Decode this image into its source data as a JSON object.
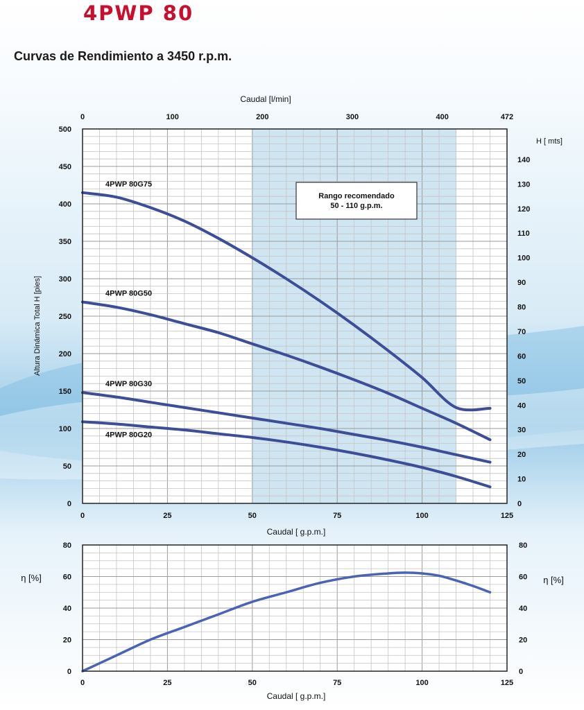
{
  "header": {
    "title": "4PWP 80",
    "subtitle": "Curvas de Rendimiento a 3450 r.p.m."
  },
  "colors": {
    "title": "#c8102e",
    "curve": "#3d4d97",
    "efficiency_curve": "#4a63b3",
    "recommended_band": "#cfe6f2"
  },
  "chart_data": [
    {
      "type": "line",
      "title": "",
      "xlabel": "Caudal [ g.p.m.]",
      "ylabel": "Altura Dinámica Total H [pies]",
      "xlim": [
        0,
        125
      ],
      "ylim": [
        0,
        500
      ],
      "x_ticks": [
        0,
        25,
        50,
        75,
        100,
        125
      ],
      "y_ticks": [
        0,
        50,
        100,
        150,
        200,
        250,
        300,
        350,
        400,
        450,
        500
      ],
      "top_axis": {
        "label": "Caudal [l/min]",
        "ticks": [
          {
            "value": 0,
            "label": "0"
          },
          {
            "value": 100,
            "label": "100"
          },
          {
            "value": 200,
            "label": "200"
          },
          {
            "value": 300,
            "label": "300"
          },
          {
            "value": 400,
            "label": "400"
          },
          {
            "value": 472,
            "label": "472"
          }
        ],
        "max": 472
      },
      "right_axis": {
        "label": "H [ mts]",
        "ticks": [
          0,
          10,
          20,
          30,
          40,
          50,
          60,
          70,
          80,
          90,
          100,
          110,
          120,
          130,
          140
        ],
        "max": 152.4
      },
      "recommended_range": {
        "label_line1": "Rango recomendado",
        "label_line2": "50 - 110 g.p.m.",
        "x_from": 50,
        "x_to": 110
      },
      "grid": true,
      "series": [
        {
          "name": "4PWP 80G75",
          "x": [
            0,
            10,
            20,
            30,
            40,
            50,
            60,
            70,
            80,
            90,
            100,
            110,
            120
          ],
          "y": [
            415,
            409,
            395,
            377,
            354,
            328,
            300,
            270,
            238,
            204,
            168,
            128,
            127
          ]
        },
        {
          "name": "4PWP 80G50",
          "x": [
            0,
            10,
            20,
            30,
            40,
            50,
            60,
            70,
            80,
            90,
            100,
            110,
            120
          ],
          "y": [
            269,
            262,
            252,
            240,
            228,
            213,
            198,
            182,
            165,
            147,
            127,
            107,
            85
          ]
        },
        {
          "name": "4PWP 80G30",
          "x": [
            0,
            10,
            20,
            30,
            40,
            50,
            60,
            70,
            80,
            90,
            100,
            110,
            120
          ],
          "y": [
            148,
            142,
            135,
            128,
            121,
            114,
            107,
            100,
            92,
            84,
            75,
            65,
            55
          ]
        },
        {
          "name": "4PWP 80G20",
          "x": [
            0,
            10,
            20,
            30,
            40,
            50,
            60,
            70,
            80,
            90,
            100,
            110,
            120
          ],
          "y": [
            109,
            106,
            102,
            98,
            93,
            88,
            82,
            75,
            67,
            58,
            48,
            36,
            22
          ]
        }
      ]
    },
    {
      "type": "line",
      "title": "",
      "xlabel": "Caudal [ g.p.m.]",
      "ylabel": "η [%]",
      "right_label": "η [%]",
      "xlim": [
        0,
        125
      ],
      "ylim": [
        0,
        80
      ],
      "x_ticks": [
        0,
        25,
        50,
        75,
        100,
        125
      ],
      "y_ticks": [
        0,
        20,
        40,
        60,
        80
      ],
      "grid": true,
      "series": [
        {
          "name": "",
          "x": [
            0,
            10,
            20,
            30,
            40,
            50,
            60,
            70,
            80,
            90,
            95,
            100,
            105,
            110,
            115,
            120
          ],
          "y": [
            0,
            10,
            20,
            28,
            36,
            44,
            50,
            56,
            60,
            62,
            62.5,
            62,
            60.5,
            57.5,
            54,
            50
          ]
        }
      ]
    }
  ]
}
